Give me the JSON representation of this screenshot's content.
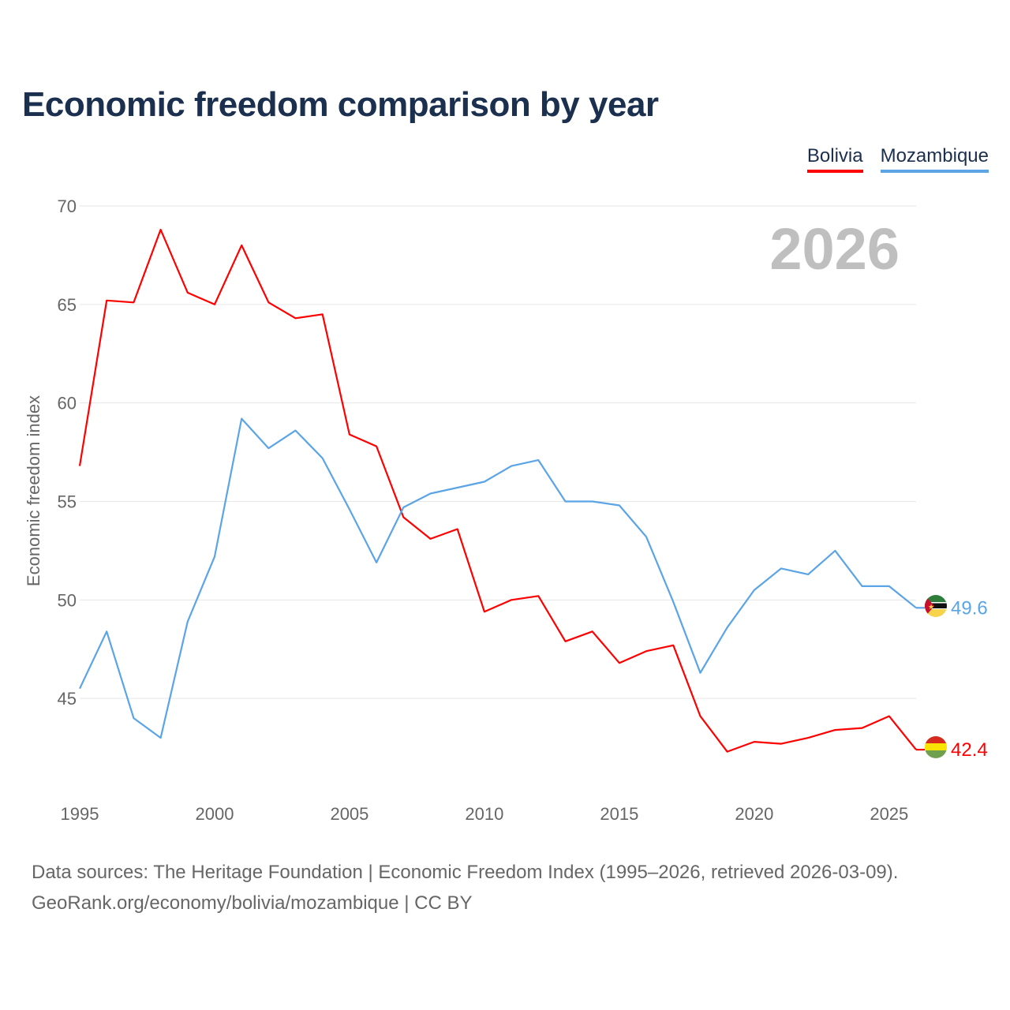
{
  "title": "Economic freedom comparison by year",
  "legend": [
    {
      "label": "Bolivia",
      "color": "#ff0000"
    },
    {
      "label": "Mozambique",
      "color": "#5ba4e6"
    }
  ],
  "watermark_year": "2026",
  "footer": {
    "line1": "Data sources: The Heritage Foundation | Economic Freedom Index (1995–2026, retrieved 2026-03-09).",
    "line2": "GeoRank.org/economy/bolivia/mozambique | CC BY"
  },
  "chart_data": {
    "type": "line",
    "title": "Economic freedom comparison by year",
    "xlabel": "",
    "ylabel": "Economic freedom index",
    "xlim": [
      1995,
      2026
    ],
    "ylim": [
      40,
      70
    ],
    "x_ticks": [
      1995,
      2000,
      2005,
      2010,
      2015,
      2020,
      2025
    ],
    "y_ticks": [
      45,
      50,
      55,
      60,
      65,
      70
    ],
    "grid": true,
    "legend_position": "top-right",
    "x": [
      1995,
      1996,
      1997,
      1998,
      1999,
      2000,
      2001,
      2002,
      2003,
      2004,
      2005,
      2006,
      2007,
      2008,
      2009,
      2010,
      2011,
      2012,
      2013,
      2014,
      2015,
      2016,
      2017,
      2018,
      2019,
      2020,
      2021,
      2022,
      2023,
      2024,
      2025,
      2026
    ],
    "series": [
      {
        "name": "Bolivia",
        "color": "#ff0000",
        "end_label": "42.4",
        "values": [
          56.8,
          65.2,
          65.1,
          68.8,
          65.6,
          65.0,
          68.0,
          65.1,
          64.3,
          64.5,
          58.4,
          57.8,
          54.2,
          53.1,
          53.6,
          49.4,
          50.0,
          50.2,
          47.9,
          48.4,
          46.8,
          47.4,
          47.7,
          44.1,
          42.3,
          42.8,
          42.7,
          43.0,
          43.4,
          43.5,
          44.1,
          42.4
        ]
      },
      {
        "name": "Mozambique",
        "color": "#5ba4e6",
        "end_label": "49.6",
        "values": [
          45.5,
          48.4,
          44.0,
          43.0,
          48.9,
          52.2,
          59.2,
          57.7,
          58.6,
          57.2,
          54.6,
          51.9,
          54.7,
          55.4,
          55.7,
          56.0,
          56.8,
          57.1,
          55.0,
          55.0,
          54.8,
          53.2,
          49.9,
          46.3,
          48.6,
          50.5,
          51.6,
          51.3,
          52.5,
          50.7,
          50.7,
          49.6
        ]
      }
    ]
  }
}
